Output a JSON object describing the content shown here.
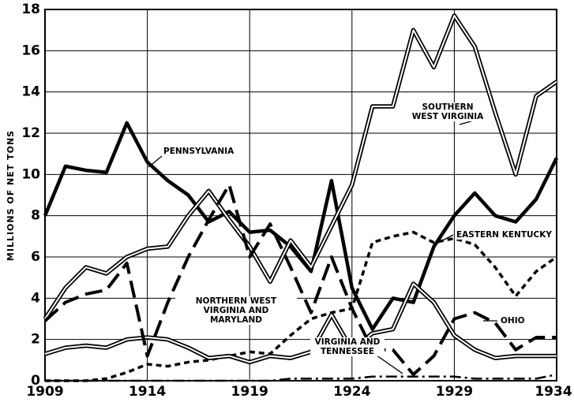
{
  "chart_data": {
    "type": "line",
    "y_label": "MILLIONS OF NET TONS",
    "x": [
      1909,
      1910,
      1911,
      1912,
      1913,
      1914,
      1915,
      1916,
      1917,
      1918,
      1919,
      1920,
      1921,
      1922,
      1923,
      1924,
      1925,
      1926,
      1927,
      1928,
      1929,
      1930,
      1931,
      1932,
      1933,
      1934
    ],
    "xlim": [
      1909,
      1934
    ],
    "xticks": [
      1909,
      1914,
      1919,
      1924,
      1929,
      1934
    ],
    "ylim": [
      0,
      18
    ],
    "yticks": [
      0,
      2,
      4,
      6,
      8,
      10,
      12,
      14,
      16,
      18
    ],
    "grid": true,
    "series": [
      {
        "name": "PENNSYLVANIA",
        "color": "#000000",
        "style": "solid",
        "values": [
          8.0,
          10.4,
          10.2,
          10.1,
          12.5,
          10.6,
          9.7,
          9.0,
          7.7,
          8.2,
          7.2,
          7.3,
          6.5,
          5.3,
          9.7,
          4.5,
          2.5,
          4.0,
          3.8,
          6.5,
          8.0,
          9.1,
          8.0,
          7.7,
          8.8,
          10.8
        ]
      },
      {
        "name": "SOUTHERN WEST VIRGINIA",
        "color": "#000000",
        "style": "double",
        "values": [
          3.0,
          4.5,
          5.5,
          5.2,
          6.0,
          6.4,
          6.5,
          8.0,
          9.2,
          7.8,
          6.5,
          4.8,
          6.8,
          5.5,
          7.5,
          9.5,
          13.3,
          13.3,
          17.0,
          15.2,
          17.7,
          16.2,
          13.0,
          10.0,
          13.8,
          14.5
        ]
      },
      {
        "name": "EASTERN KENTUCKY",
        "color": "#000000",
        "style": "dotted",
        "values": [
          0.0,
          0.0,
          0.0,
          0.1,
          0.4,
          0.8,
          0.7,
          0.9,
          1.0,
          1.2,
          1.4,
          1.3,
          2.2,
          3.0,
          3.3,
          3.5,
          6.7,
          7.0,
          7.2,
          6.7,
          6.9,
          6.6,
          5.5,
          4.1,
          5.3,
          6.0
        ]
      },
      {
        "name": "NORTHERN WEST VIRGINIA AND MARYLAND",
        "color": "#000000",
        "style": "double",
        "values": [
          1.3,
          1.6,
          1.7,
          1.6,
          2.0,
          2.1,
          2.0,
          1.6,
          1.1,
          1.2,
          0.9,
          1.2,
          1.1,
          1.4,
          3.2,
          1.5,
          2.3,
          2.5,
          4.7,
          3.8,
          2.2,
          1.5,
          1.1,
          1.2,
          1.2,
          1.2
        ]
      },
      {
        "name": "OHIO",
        "color": "#000000",
        "style": "dashed",
        "values": [
          2.9,
          3.8,
          4.2,
          4.4,
          5.7,
          1.2,
          3.8,
          6.0,
          7.8,
          9.5,
          6.0,
          7.6,
          5.5,
          3.3,
          6.0,
          3.5,
          1.5,
          1.5,
          0.3,
          1.2,
          3.0,
          3.3,
          2.8,
          1.5,
          2.1,
          2.1
        ]
      },
      {
        "name": "VIRGINIA AND TENNESSEE",
        "color": "#000000",
        "style": "dashdot",
        "values": [
          0.0,
          0.0,
          0.0,
          0.0,
          0.0,
          0.0,
          0.0,
          0.0,
          0.0,
          0.0,
          0.0,
          0.0,
          0.1,
          0.1,
          0.1,
          0.1,
          0.2,
          0.2,
          0.2,
          0.2,
          0.2,
          0.1,
          0.1,
          0.1,
          0.1,
          0.3
        ]
      }
    ]
  }
}
